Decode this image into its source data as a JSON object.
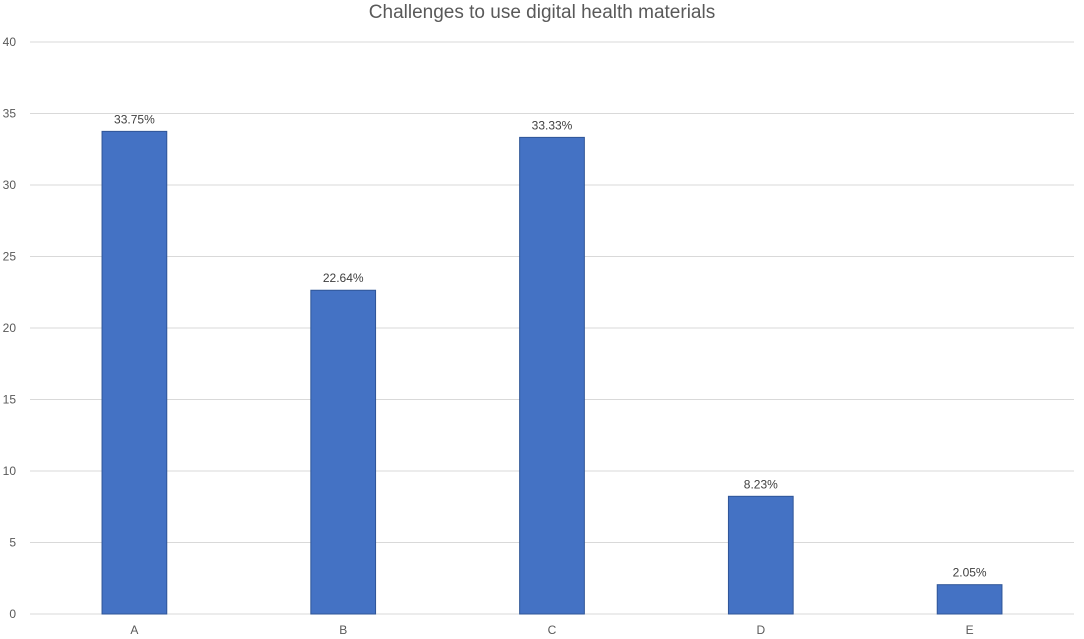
{
  "chart_data": {
    "type": "bar",
    "title": "Challenges to use digital health materials",
    "categories": [
      "A",
      "B",
      "C",
      "D",
      "E"
    ],
    "values": [
      33.75,
      22.64,
      33.33,
      8.23,
      2.05
    ],
    "data_labels": [
      "33.75%",
      "22.64%",
      "33.33%",
      "8.23%",
      "2.05%"
    ],
    "ylim": [
      0,
      40
    ],
    "yticks": [
      0,
      5,
      10,
      15,
      20,
      25,
      30,
      35,
      40
    ],
    "grid": true,
    "bar_color": "#4472C4",
    "grid_color": "#D9D9D9"
  }
}
